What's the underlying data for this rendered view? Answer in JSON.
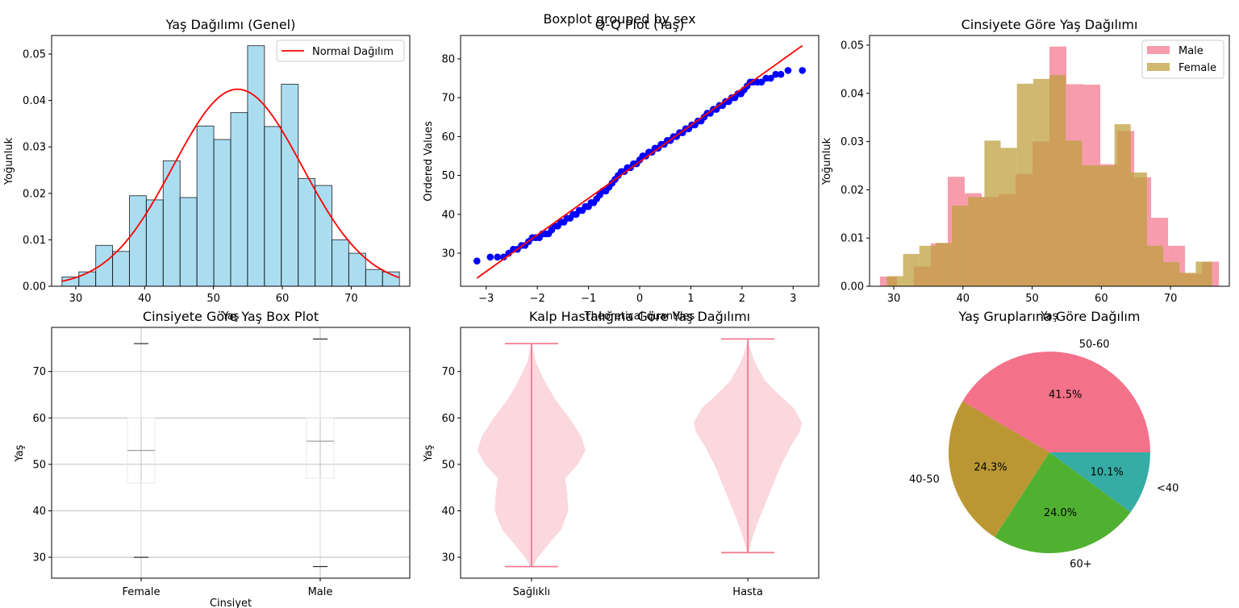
{
  "suptitle": "Boxplot grouped by sex",
  "chart_data": [
    {
      "id": "hist_all",
      "type": "bar",
      "title": "Yaş Dağılımı (Genel)",
      "xlabel": "Yaş",
      "ylabel": "Yoğunluk",
      "xlim": [
        26.5,
        78.5
      ],
      "ylim": [
        0,
        0.054
      ],
      "xticks": [
        30,
        40,
        50,
        60,
        70
      ],
      "yticks": [
        0.0,
        0.01,
        0.02,
        0.03,
        0.04,
        0.05
      ],
      "ytick_labels": [
        "0.00",
        "0.01",
        "0.02",
        "0.03",
        "0.04",
        "0.05"
      ],
      "bin_edges": [
        28.0,
        30.45,
        32.9,
        35.35,
        37.8,
        40.25,
        42.7,
        45.15,
        47.6,
        50.05,
        52.5,
        54.95,
        57.4,
        59.85,
        62.3,
        64.75,
        67.2,
        69.65,
        72.1,
        74.55,
        77.0
      ],
      "values": [
        0.002,
        0.0031,
        0.0088,
        0.0075,
        0.0195,
        0.0186,
        0.027,
        0.0191,
        0.0345,
        0.0316,
        0.0374,
        0.0518,
        0.0344,
        0.0435,
        0.0232,
        0.0217,
        0.01,
        0.0071,
        0.0036,
        0.0031
      ],
      "bar_color": "#87CEEB",
      "bar_edge_color": "#000000",
      "series": [
        {
          "name": "Normal Dağılım",
          "type": "line",
          "color": "#FF0000",
          "mean": 53.5,
          "std": 9.4
        }
      ],
      "legend": "top-right"
    },
    {
      "id": "qq",
      "type": "scatter",
      "title": "Q-Q Plot (Yaş)",
      "xlabel": "Theoretical quantiles",
      "ylabel": "Ordered Values",
      "xlim": [
        -3.5,
        3.5
      ],
      "ylim": [
        21.5,
        86
      ],
      "xticks": [
        -3,
        -2,
        -1,
        0,
        1,
        2,
        3
      ],
      "xtick_labels": [
        "−3",
        "−2",
        "−1",
        "0",
        "1",
        "2",
        "3"
      ],
      "yticks": [
        30,
        40,
        50,
        60,
        70,
        80
      ],
      "points": [
        [
          -3.18,
          28
        ],
        [
          -2.92,
          29
        ],
        [
          -2.78,
          29
        ],
        [
          -2.66,
          29
        ],
        [
          -2.56,
          30
        ],
        [
          -2.47,
          31
        ],
        [
          -2.39,
          31
        ],
        [
          -2.31,
          32
        ],
        [
          -2.24,
          32
        ],
        [
          -2.17,
          33
        ],
        [
          -2.1,
          34
        ],
        [
          -2.03,
          34
        ],
        [
          -1.96,
          34
        ],
        [
          -1.9,
          35
        ],
        [
          -1.84,
          35
        ],
        [
          -1.78,
          35
        ],
        [
          -1.72,
          36
        ],
        [
          -1.66,
          37
        ],
        [
          -1.6,
          37
        ],
        [
          -1.54,
          38
        ],
        [
          -1.48,
          38
        ],
        [
          -1.42,
          39
        ],
        [
          -1.36,
          39
        ],
        [
          -1.3,
          40
        ],
        [
          -1.24,
          40
        ],
        [
          -1.18,
          41
        ],
        [
          -1.12,
          41
        ],
        [
          -1.06,
          42
        ],
        [
          -1.0,
          42
        ],
        [
          -0.95,
          43
        ],
        [
          -0.9,
          43
        ],
        [
          -0.84,
          44
        ],
        [
          -0.78,
          45
        ],
        [
          -0.72,
          46
        ],
        [
          -0.66,
          46
        ],
        [
          -0.6,
          47
        ],
        [
          -0.54,
          48
        ],
        [
          -0.48,
          49
        ],
        [
          -0.42,
          50
        ],
        [
          -0.36,
          51
        ],
        [
          -0.3,
          51
        ],
        [
          -0.24,
          52
        ],
        [
          -0.18,
          52
        ],
        [
          -0.12,
          53
        ],
        [
          -0.06,
          53
        ],
        [
          0.0,
          54
        ],
        [
          0.06,
          55
        ],
        [
          0.12,
          55
        ],
        [
          0.18,
          56
        ],
        [
          0.24,
          56
        ],
        [
          0.3,
          57
        ],
        [
          0.36,
          57
        ],
        [
          0.42,
          58
        ],
        [
          0.48,
          58
        ],
        [
          0.54,
          59
        ],
        [
          0.6,
          59
        ],
        [
          0.66,
          60
        ],
        [
          0.72,
          60
        ],
        [
          0.78,
          61
        ],
        [
          0.84,
          61
        ],
        [
          0.9,
          62
        ],
        [
          0.96,
          62
        ],
        [
          1.02,
          63
        ],
        [
          1.08,
          63
        ],
        [
          1.14,
          64
        ],
        [
          1.2,
          64
        ],
        [
          1.26,
          65
        ],
        [
          1.32,
          66
        ],
        [
          1.38,
          66
        ],
        [
          1.44,
          67
        ],
        [
          1.5,
          67
        ],
        [
          1.56,
          68
        ],
        [
          1.62,
          68
        ],
        [
          1.68,
          69
        ],
        [
          1.74,
          69
        ],
        [
          1.8,
          70
        ],
        [
          1.86,
          70
        ],
        [
          1.92,
          71
        ],
        [
          1.98,
          71
        ],
        [
          2.04,
          72
        ],
        [
          2.1,
          73
        ],
        [
          2.16,
          74
        ],
        [
          2.22,
          74
        ],
        [
          2.3,
          74
        ],
        [
          2.38,
          74
        ],
        [
          2.47,
          75
        ],
        [
          2.56,
          75
        ],
        [
          2.66,
          76
        ],
        [
          2.76,
          76
        ],
        [
          2.9,
          77
        ],
        [
          3.18,
          77
        ]
      ],
      "fit_line": {
        "intercept": 53.5,
        "slope": 9.4,
        "x_range": [
          -3.18,
          3.18
        ]
      },
      "point_color": "#0000FF",
      "line_color": "#FF0000"
    },
    {
      "id": "hist_sex",
      "type": "bar",
      "title": "Cinsiyete Göre Yaş Dağılımı",
      "xlabel": "Yaş",
      "ylabel": "Yoğunluk",
      "xlim": [
        26.5,
        78.5
      ],
      "ylim": [
        0,
        0.052
      ],
      "xticks": [
        30,
        40,
        50,
        60,
        70
      ],
      "yticks": [
        0.0,
        0.01,
        0.02,
        0.03,
        0.04,
        0.05
      ],
      "ytick_labels": [
        "0.00",
        "0.01",
        "0.02",
        "0.03",
        "0.04",
        "0.05"
      ],
      "legend": "top-right",
      "series": [
        {
          "name": "Male",
          "color": "#F37B91",
          "bin_edges": [
            28.0,
            30.45,
            32.9,
            35.35,
            37.8,
            40.25,
            42.7,
            45.15,
            47.6,
            50.05,
            52.5,
            54.95,
            57.4,
            59.85,
            62.3,
            64.75,
            67.2,
            69.65,
            72.1,
            74.55,
            77.0
          ],
          "values": [
            0.002,
            0.0,
            0.0041,
            0.0089,
            0.0227,
            0.0193,
            0.0185,
            0.0191,
            0.0233,
            0.03,
            0.0497,
            0.0419,
            0.0418,
            0.0253,
            0.0322,
            0.0226,
            0.0142,
            0.0084,
            0.0026,
            0.0051
          ]
        },
        {
          "name": "Female",
          "color": "#BFA040",
          "bin_edges": [
            29.0,
            31.35,
            33.7,
            36.05,
            38.4,
            40.75,
            43.1,
            45.45,
            47.8,
            50.15,
            52.5,
            54.85,
            57.2,
            59.55,
            61.9,
            64.25,
            66.6,
            68.95,
            71.3,
            73.65,
            76.0
          ],
          "values": [
            0.0021,
            0.0067,
            0.0084,
            0.009,
            0.0167,
            0.0185,
            0.0302,
            0.0287,
            0.042,
            0.043,
            0.0438,
            0.0302,
            0.0251,
            0.025,
            0.0336,
            0.0236,
            0.0084,
            0.005,
            0.0028,
            0.0051
          ]
        }
      ]
    },
    {
      "id": "box",
      "type": "box",
      "title": "Cinsiyete Göre Yaş Box Plot",
      "xlabel": "Cinsiyet",
      "ylabel": "Yaş",
      "ylim": [
        25.5,
        79.5
      ],
      "yticks": [
        30,
        40,
        50,
        60,
        70
      ],
      "categories": [
        "Female",
        "Male"
      ],
      "boxes": [
        {
          "min": 30,
          "q1": 46,
          "median": 53,
          "q3": 60,
          "max": 76
        },
        {
          "min": 28,
          "q1": 47,
          "median": 55,
          "q3": 60,
          "max": 77
        }
      ],
      "grid": true
    },
    {
      "id": "violin",
      "type": "violin",
      "title": "Kalp Hastalığına Göre Yaş Dağılımı",
      "ylabel": "Yaş",
      "ylim": [
        25.5,
        79.5
      ],
      "yticks": [
        30,
        40,
        50,
        60,
        70
      ],
      "categories": [
        "Sağlıklı",
        "Hasta"
      ],
      "color": "#F37B91",
      "violins": [
        {
          "min": 28,
          "max": 76,
          "profile": [
            [
              28,
              0.02
            ],
            [
              30,
              0.12
            ],
            [
              33,
              0.33
            ],
            [
              36,
              0.55
            ],
            [
              40,
              0.68
            ],
            [
              44,
              0.66
            ],
            [
              47,
              0.62
            ],
            [
              50,
              0.86
            ],
            [
              53,
              1.0
            ],
            [
              56,
              0.92
            ],
            [
              60,
              0.7
            ],
            [
              64,
              0.44
            ],
            [
              68,
              0.24
            ],
            [
              72,
              0.08
            ],
            [
              76,
              0.01
            ]
          ]
        },
        {
          "min": 31,
          "max": 77,
          "profile": [
            [
              31,
              0.02
            ],
            [
              34,
              0.08
            ],
            [
              38,
              0.2
            ],
            [
              42,
              0.34
            ],
            [
              46,
              0.48
            ],
            [
              50,
              0.62
            ],
            [
              54,
              0.8
            ],
            [
              57,
              0.96
            ],
            [
              59,
              1.0
            ],
            [
              62,
              0.86
            ],
            [
              65,
              0.58
            ],
            [
              68,
              0.32
            ],
            [
              72,
              0.13
            ],
            [
              75,
              0.04
            ],
            [
              77,
              0.0
            ]
          ]
        }
      ]
    },
    {
      "id": "pie",
      "type": "pie",
      "title": "Yaş Gruplarına Göre Dağılım",
      "slices": [
        {
          "label": "50-60",
          "value": 41.5,
          "pct": "41.5%",
          "color": "#F37189"
        },
        {
          "label": "40-50",
          "value": 24.3,
          "pct": "24.3%",
          "color": "#BA9732"
        },
        {
          "label": "60+",
          "value": 24.0,
          "pct": "24.0%",
          "color": "#50B131"
        },
        {
          "label": "<40",
          "value": 10.1,
          "pct": "10.1%",
          "color": "#36ADA4"
        }
      ]
    }
  ]
}
